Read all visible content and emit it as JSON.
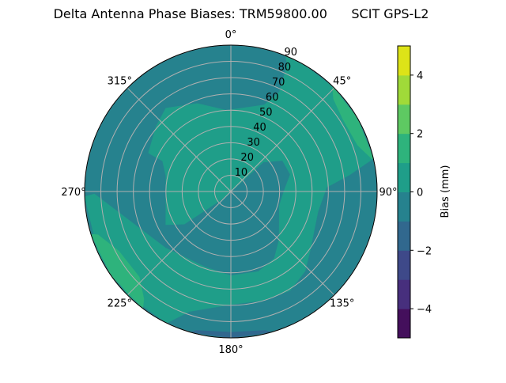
{
  "chart_data": {
    "type": "polar-contour",
    "title": "Delta Antenna Phase Biases: TRM59800.00      SCIT GPS-L2",
    "angle_ticks": [
      {
        "value": 0,
        "label": "0°"
      },
      {
        "value": 45,
        "label": "45°"
      },
      {
        "value": 90,
        "label": "90°"
      },
      {
        "value": 135,
        "label": "135°"
      },
      {
        "value": 180,
        "label": "180°"
      },
      {
        "value": 225,
        "label": "225°"
      },
      {
        "value": 270,
        "label": "270°"
      },
      {
        "value": 315,
        "label": "315°"
      }
    ],
    "radial_ticks": [
      "10",
      "20",
      "30",
      "40",
      "50",
      "60",
      "70",
      "80",
      "90"
    ],
    "radial_range": [
      0,
      90
    ],
    "radial_label_angle": 22.5,
    "angle_direction": "clockwise",
    "zero_location": "north",
    "grid": true,
    "colorbar": {
      "label": "Bias (mm)",
      "range": [
        -5,
        5
      ],
      "levels": [
        -5,
        -4,
        -3,
        -2,
        -1,
        0,
        1,
        2,
        3,
        4,
        5
      ],
      "colors": [
        "#440f5c",
        "#472f7d",
        "#3e4989",
        "#31688e",
        "#26828e",
        "#1f9e89",
        "#2eb37c",
        "#5ec962",
        "#a0da39",
        "#dde318"
      ],
      "ticks": [
        {
          "value": 4,
          "label": "4"
        },
        {
          "value": 2,
          "label": "2"
        },
        {
          "value": 0,
          "label": "0"
        },
        {
          "value": -2,
          "label": "−2"
        },
        {
          "value": -4,
          "label": "−4"
        }
      ]
    },
    "background_level": [
      -1,
      0
    ],
    "regions": [
      {
        "level": [
          0,
          1
        ],
        "points": [
          [
            22,
            90
          ],
          [
            30,
            90
          ],
          [
            45,
            90
          ],
          [
            60,
            90
          ],
          [
            77,
            90
          ],
          [
            82,
            74
          ],
          [
            87.5,
            59
          ],
          [
            103,
            55
          ],
          [
            127,
            61
          ],
          [
            137,
            67
          ],
          [
            149,
            71
          ],
          [
            163,
            70
          ],
          [
            180,
            69.5
          ],
          [
            199,
            78
          ],
          [
            206,
            90
          ],
          [
            225,
            90
          ],
          [
            245,
            90
          ],
          [
            268,
            90
          ],
          [
            269,
            84
          ],
          [
            253,
            64
          ],
          [
            229,
            53
          ],
          [
            199,
            49
          ],
          [
            180,
            51.7
          ],
          [
            161,
            52
          ],
          [
            147,
            49
          ],
          [
            135,
            42
          ],
          [
            106,
            31
          ],
          [
            88,
            33
          ],
          [
            74,
            38
          ],
          [
            59,
            37
          ],
          [
            48,
            27
          ],
          [
            49,
            5
          ],
          [
            227,
            6
          ],
          [
            235,
            35
          ],
          [
            243,
            45
          ],
          [
            283,
            41
          ],
          [
            294,
            46
          ],
          [
            295,
            56
          ],
          [
            311,
            61
          ],
          [
            322,
            65
          ],
          [
            339,
            58
          ],
          [
            357,
            50
          ],
          [
            21,
            57
          ],
          [
            26,
            68
          ],
          [
            24,
            85
          ]
        ]
      },
      {
        "level": [
          1,
          2
        ],
        "points": [
          [
            44,
            90
          ],
          [
            60,
            90
          ],
          [
            77,
            90
          ],
          [
            77,
            89
          ],
          [
            70,
            83
          ],
          [
            57,
            82
          ],
          [
            48,
            85
          ]
        ]
      },
      {
        "level": [
          1,
          2
        ],
        "points": [
          [
            217,
            90
          ],
          [
            235,
            90
          ],
          [
            253,
            90
          ],
          [
            252,
            86
          ],
          [
            242,
            78
          ],
          [
            227,
            77
          ],
          [
            219,
            85
          ]
        ]
      },
      {
        "level": [
          -2,
          -1
        ],
        "points": [
          [
            164,
            90
          ],
          [
            180,
            90
          ],
          [
            196,
            90
          ],
          [
            194,
            88
          ],
          [
            180,
            86.5
          ],
          [
            166,
            88
          ]
        ]
      }
    ]
  }
}
